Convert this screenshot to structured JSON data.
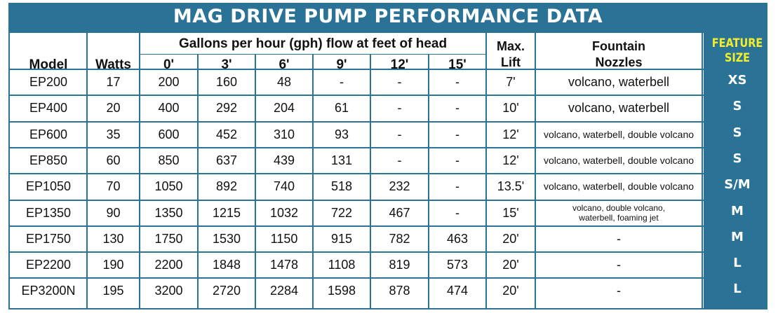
{
  "title": "MAG DRIVE PUMP PERFORMANCE DATA",
  "headers": {
    "model": "Model",
    "watts": "Watts",
    "flow_group": "Gallons per hour (gph) flow at feet of head",
    "heads": [
      "0'",
      "3'",
      "6'",
      "9'",
      "12'",
      "15'"
    ],
    "max_lift_line1": "Max.",
    "max_lift_line2": "Lift",
    "nozzles_line1": "Fountain",
    "nozzles_line2": "Nozzles",
    "feature_line1": "FEATURE",
    "feature_line2": "SIZE"
  },
  "rows": [
    {
      "model": "EP200",
      "watts": "17",
      "flow": [
        "200",
        "160",
        "48",
        "-",
        "-",
        "-"
      ],
      "lift": "7'",
      "nozzles": "volcano, waterbell",
      "size": "XS"
    },
    {
      "model": "EP400",
      "watts": "20",
      "flow": [
        "400",
        "292",
        "204",
        "61",
        "-",
        "-"
      ],
      "lift": "10'",
      "nozzles": "volcano, waterbell",
      "size": "S"
    },
    {
      "model": "EP600",
      "watts": "35",
      "flow": [
        "600",
        "452",
        "310",
        "93",
        "-",
        "-"
      ],
      "lift": "12'",
      "nozzles": "volcano, waterbell, double volcano",
      "size": "S"
    },
    {
      "model": "EP850",
      "watts": "60",
      "flow": [
        "850",
        "637",
        "439",
        "131",
        "-",
        "-"
      ],
      "lift": "12'",
      "nozzles": "volcano, waterbell, double volcano",
      "size": "S"
    },
    {
      "model": "EP1050",
      "watts": "70",
      "flow": [
        "1050",
        "892",
        "740",
        "518",
        "232",
        "-"
      ],
      "lift": "13.5'",
      "nozzles": "volcano, waterbell, double volcano",
      "size": "S/M"
    },
    {
      "model": "EP1350",
      "watts": "90",
      "flow": [
        "1350",
        "1215",
        "1032",
        "722",
        "467",
        "-"
      ],
      "lift": "15'",
      "nozzles": "volcano, double volcano, waterbell, foaming jet",
      "size": "M"
    },
    {
      "model": "EP1750",
      "watts": "130",
      "flow": [
        "1750",
        "1530",
        "1150",
        "915",
        "782",
        "463"
      ],
      "lift": "20'",
      "nozzles": "-",
      "size": "M"
    },
    {
      "model": "EP2200",
      "watts": "190",
      "flow": [
        "2200",
        "1848",
        "1478",
        "1108",
        "819",
        "573"
      ],
      "lift": "20'",
      "nozzles": "-",
      "size": "L"
    },
    {
      "model": "EP3200N",
      "watts": "195",
      "flow": [
        "3200",
        "2720",
        "2284",
        "1598",
        "878",
        "474"
      ],
      "lift": "20'",
      "nozzles": "-",
      "size": "L"
    }
  ],
  "colors": {
    "frame_blue": "#2a7396",
    "feature_yellow": "#f4ee2a",
    "text": "#111111",
    "background": "#ffffff"
  }
}
